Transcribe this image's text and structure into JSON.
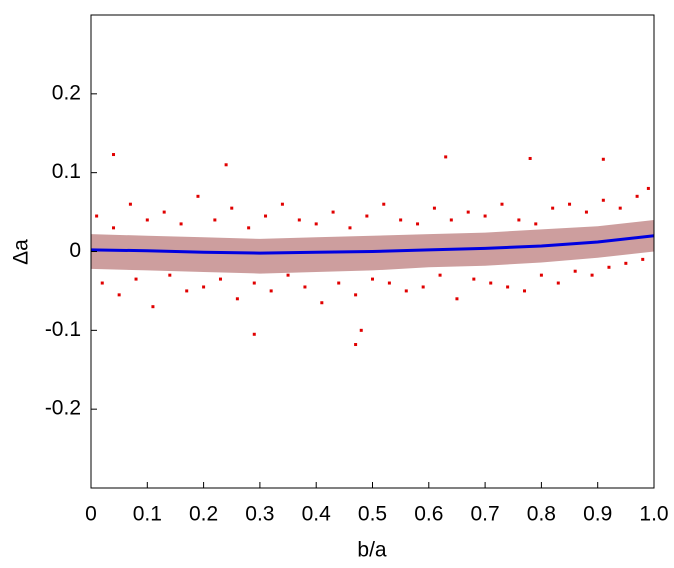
{
  "chart_data": {
    "type": "scatter",
    "x_label": "b/a",
    "y_label": "Δa",
    "xlim": [
      0,
      1
    ],
    "ylim": [
      -0.3,
      0.3
    ],
    "xticks": [
      0,
      0.1,
      0.2,
      0.3,
      0.4,
      0.5,
      0.6,
      0.7,
      0.8,
      0.9,
      {
        "value": 1,
        "label": "1.0"
      }
    ],
    "yticks": [
      -0.2,
      -0.1,
      0,
      0.1,
      0.2
    ],
    "series": [
      {
        "type": "scatter",
        "color": "#e00000",
        "x": [
          0.01,
          0.02,
          0.04,
          0.05,
          0.07,
          0.08,
          0.1,
          0.11,
          0.13,
          0.14,
          0.16,
          0.17,
          0.19,
          0.2,
          0.22,
          0.23,
          0.25,
          0.26,
          0.28,
          0.29,
          0.31,
          0.32,
          0.34,
          0.35,
          0.37,
          0.38,
          0.4,
          0.41,
          0.43,
          0.44,
          0.46,
          0.47,
          0.49,
          0.5,
          0.52,
          0.53,
          0.55,
          0.56,
          0.58,
          0.59,
          0.61,
          0.62,
          0.64,
          0.65,
          0.67,
          0.68,
          0.7,
          0.71,
          0.73,
          0.74,
          0.76,
          0.77,
          0.79,
          0.8,
          0.82,
          0.83,
          0.85,
          0.86,
          0.88,
          0.89,
          0.91,
          0.92,
          0.94,
          0.95,
          0.97,
          0.98,
          0.99,
          0.04,
          0.24,
          0.47,
          0.63,
          0.78,
          0.91,
          0.29,
          0.48
        ],
        "values": [
          0.045,
          -0.04,
          0.03,
          -0.055,
          0.06,
          -0.035,
          0.04,
          -0.07,
          0.05,
          -0.03,
          0.035,
          -0.05,
          0.07,
          -0.045,
          0.04,
          -0.035,
          0.055,
          -0.06,
          0.03,
          -0.04,
          0.045,
          -0.05,
          0.06,
          -0.03,
          0.04,
          -0.045,
          0.035,
          -0.065,
          0.05,
          -0.04,
          0.03,
          -0.055,
          0.045,
          -0.035,
          0.06,
          -0.04,
          0.04,
          -0.05,
          0.035,
          -0.045,
          0.055,
          -0.03,
          0.04,
          -0.06,
          0.05,
          -0.035,
          0.045,
          -0.04,
          0.06,
          -0.045,
          0.04,
          -0.05,
          0.035,
          -0.03,
          0.055,
          -0.04,
          0.06,
          -0.025,
          0.05,
          -0.03,
          0.065,
          -0.02,
          0.055,
          -0.015,
          0.07,
          -0.01,
          0.08,
          0.123,
          0.11,
          -0.118,
          0.12,
          0.118,
          0.117,
          -0.105,
          -0.1
        ]
      },
      {
        "type": "band",
        "color": "#c89494",
        "x": [
          0,
          0.1,
          0.2,
          0.3,
          0.4,
          0.5,
          0.6,
          0.7,
          0.8,
          0.9,
          1
        ],
        "upper": [
          0.022,
          0.02,
          0.018,
          0.016,
          0.018,
          0.02,
          0.022,
          0.024,
          0.028,
          0.032,
          0.04
        ],
        "lower": [
          -0.022,
          -0.024,
          -0.026,
          -0.028,
          -0.026,
          -0.024,
          -0.02,
          -0.018,
          -0.014,
          -0.008,
          0
        ]
      },
      {
        "type": "line",
        "color": "#0000e0",
        "x": [
          0,
          0.1,
          0.2,
          0.3,
          0.4,
          0.5,
          0.6,
          0.7,
          0.8,
          0.9,
          1
        ],
        "values": [
          0.002,
          0.001,
          -0.001,
          -0.002,
          -0.001,
          0,
          0.002,
          0.004,
          0.007,
          0.012,
          0.02
        ]
      }
    ]
  }
}
